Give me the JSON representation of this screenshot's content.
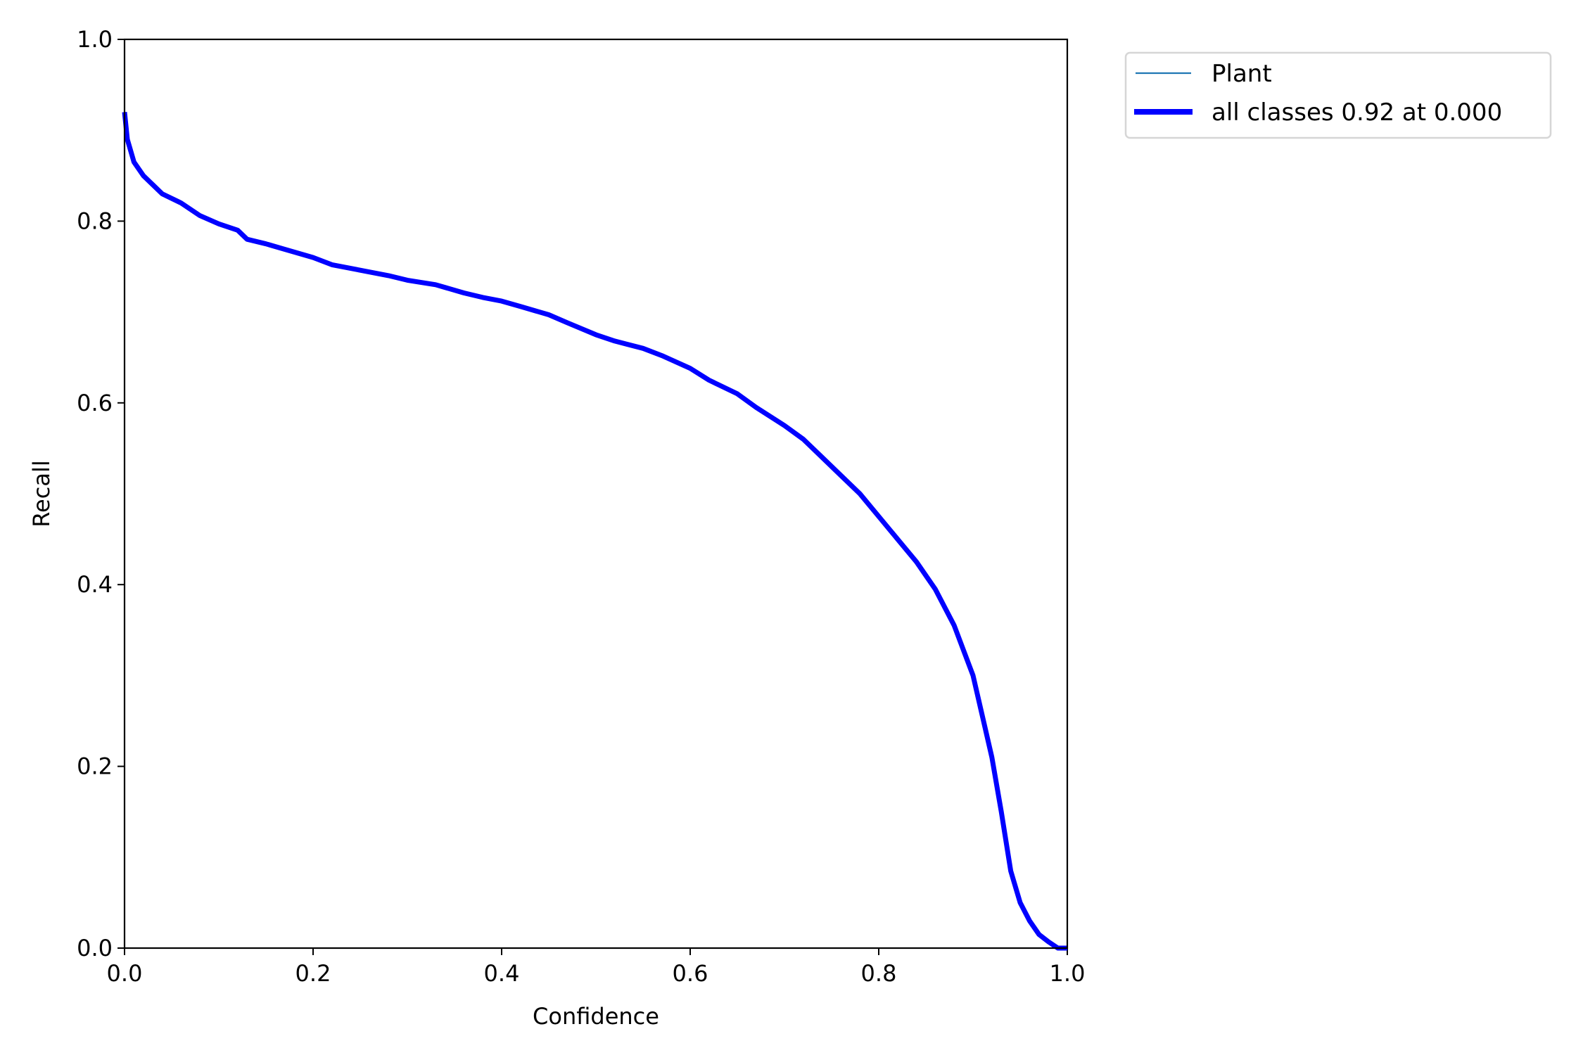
{
  "chart_data": {
    "type": "line",
    "title": "",
    "xlabel": "Confidence",
    "ylabel": "Recall",
    "xlim": [
      0,
      1
    ],
    "ylim": [
      0,
      1
    ],
    "grid": false,
    "legend_placement": "outside-top-right",
    "xticks": [
      "0.0",
      "0.2",
      "0.4",
      "0.6",
      "0.8",
      "1.0"
    ],
    "yticks": [
      "0.0",
      "0.2",
      "0.4",
      "0.6",
      "0.8",
      "1.0"
    ],
    "series": [
      {
        "name": "Plant",
        "color": "#1f77b4",
        "x": [
          0,
          0.003,
          0.01,
          0.02,
          0.03,
          0.04,
          0.06,
          0.08,
          0.1,
          0.12,
          0.13,
          0.15,
          0.17,
          0.2,
          0.22,
          0.25,
          0.28,
          0.3,
          0.33,
          0.36,
          0.38,
          0.4,
          0.42,
          0.45,
          0.47,
          0.5,
          0.52,
          0.55,
          0.57,
          0.6,
          0.62,
          0.65,
          0.67,
          0.7,
          0.72,
          0.74,
          0.76,
          0.78,
          0.8,
          0.82,
          0.84,
          0.86,
          0.88,
          0.9,
          0.91,
          0.92,
          0.93,
          0.94,
          0.95,
          0.96,
          0.97,
          0.98,
          0.99,
          1.0
        ],
        "y": [
          0.92,
          0.89,
          0.865,
          0.85,
          0.84,
          0.83,
          0.82,
          0.806,
          0.797,
          0.79,
          0.78,
          0.775,
          0.769,
          0.76,
          0.752,
          0.746,
          0.74,
          0.735,
          0.73,
          0.721,
          0.716,
          0.712,
          0.706,
          0.697,
          0.688,
          0.675,
          0.668,
          0.66,
          0.652,
          0.638,
          0.625,
          0.61,
          0.595,
          0.575,
          0.56,
          0.54,
          0.52,
          0.5,
          0.475,
          0.45,
          0.425,
          0.395,
          0.355,
          0.3,
          0.255,
          0.21,
          0.15,
          0.085,
          0.05,
          0.03,
          0.015,
          0.007,
          0.0,
          0.0
        ]
      },
      {
        "name": "all classes 0.92 at 0.000",
        "color": "#0000ff",
        "x": [
          0,
          0.003,
          0.01,
          0.02,
          0.03,
          0.04,
          0.06,
          0.08,
          0.1,
          0.12,
          0.13,
          0.15,
          0.17,
          0.2,
          0.22,
          0.25,
          0.28,
          0.3,
          0.33,
          0.36,
          0.38,
          0.4,
          0.42,
          0.45,
          0.47,
          0.5,
          0.52,
          0.55,
          0.57,
          0.6,
          0.62,
          0.65,
          0.67,
          0.7,
          0.72,
          0.74,
          0.76,
          0.78,
          0.8,
          0.82,
          0.84,
          0.86,
          0.88,
          0.9,
          0.91,
          0.92,
          0.93,
          0.94,
          0.95,
          0.96,
          0.97,
          0.98,
          0.99,
          1.0
        ],
        "y": [
          0.92,
          0.89,
          0.865,
          0.85,
          0.84,
          0.83,
          0.82,
          0.806,
          0.797,
          0.79,
          0.78,
          0.775,
          0.769,
          0.76,
          0.752,
          0.746,
          0.74,
          0.735,
          0.73,
          0.721,
          0.716,
          0.712,
          0.706,
          0.697,
          0.688,
          0.675,
          0.668,
          0.66,
          0.652,
          0.638,
          0.625,
          0.61,
          0.595,
          0.575,
          0.56,
          0.54,
          0.52,
          0.5,
          0.475,
          0.45,
          0.425,
          0.395,
          0.355,
          0.3,
          0.255,
          0.21,
          0.15,
          0.085,
          0.05,
          0.03,
          0.015,
          0.007,
          0.0,
          0.0
        ]
      }
    ]
  }
}
